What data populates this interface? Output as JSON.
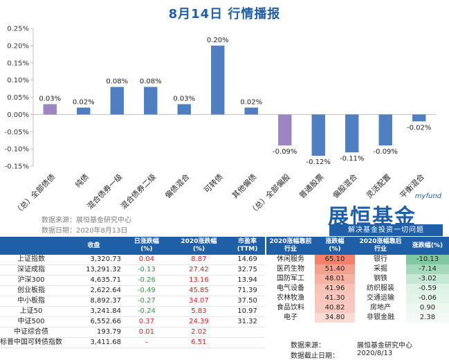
{
  "title": "8月14日  行情播报",
  "chart_data": {
    "type": "bar",
    "categories": [
      "（总）全部债债",
      "纯债",
      "混合债券一级",
      "混合债券二级",
      "偏债混合",
      "可转债",
      "其他偏债",
      "（总）全部偏股",
      "普通股票",
      "偏股混合",
      "灵活配置",
      "平衡混合"
    ],
    "values": [
      0.03,
      0.02,
      0.08,
      0.08,
      0.03,
      0.2,
      0.02,
      -0.09,
      -0.12,
      -0.11,
      -0.09,
      -0.02
    ],
    "data_labels": [
      "0.03%",
      "0.02%",
      "0.08%",
      "0.08%",
      "0.03%",
      "0.20%",
      "0.02%",
      "-0.09%",
      "-0.12%",
      "-0.11%",
      "-0.09%",
      "-0.02%"
    ],
    "highlight_color": "#9b86c2",
    "bar_color": "#4f7fc0",
    "highlight": [
      0,
      7
    ],
    "ylim": [
      -0.15,
      0.25
    ],
    "yticks": [
      0.25,
      0.2,
      0.15,
      0.1,
      0.05,
      0.0,
      -0.05,
      -0.1,
      -0.15
    ],
    "ytick_labels": [
      "0.25%",
      "0.20%",
      "0.15%",
      "0.10%",
      "0.05%",
      "0.00%",
      "-0.05%",
      "-0.10%",
      "-0.15%"
    ],
    "grid": false
  },
  "source": {
    "line1": "数据来源：展恒基金研究中心",
    "line2": "数据日期：2020年8月13日"
  },
  "logo": {
    "small": "myfund",
    "main": "展恒基金",
    "sub": "解决基金投资一切问题"
  },
  "index_table": {
    "headers": [
      "",
      "收盘",
      "日涨跌幅\n(%)",
      "2020涨跌幅\n(%)",
      "市盈率\n(TTM)"
    ],
    "rows": [
      {
        "name": "上证指数",
        "close": "3,320.73",
        "day": "0.04",
        "ytd": "8.87",
        "pe": "14.69"
      },
      {
        "name": "深证成指",
        "close": "13,291.32",
        "day": "-0.13",
        "ytd": "27.42",
        "pe": "32.75"
      },
      {
        "name": "沪深300",
        "close": "4,635.71",
        "day": "-0.26",
        "ytd": "13.16",
        "pe": "13.94"
      },
      {
        "name": "创业板指",
        "close": "2,622.64",
        "day": "-0.49",
        "ytd": "45.85",
        "pe": "71.39"
      },
      {
        "name": "中小板指",
        "close": "8,892.37",
        "day": "-0.27",
        "ytd": "34.07",
        "pe": "37.50"
      },
      {
        "name": "上证50",
        "close": "3,241.84",
        "day": "-0.24",
        "ytd": "5.83",
        "pe": "10.97"
      },
      {
        "name": "中证500",
        "close": "6,552.66",
        "day": "0.37",
        "ytd": "24.39",
        "pe": "31.32"
      },
      {
        "name": "中证综合债",
        "close": "193.79",
        "day": "0.01",
        "ytd": "2.02",
        "pe": ""
      },
      {
        "name": "标普中国可转债指数",
        "close": "3,411.68",
        "day": "–",
        "ytd": "6.51",
        "pe": ""
      }
    ]
  },
  "sector_table": {
    "headers": [
      "2020涨幅靠前\n行业",
      "涨跌幅\n(%)",
      "2020涨幅靠后\n行业",
      "涨跌幅(%)"
    ],
    "rows": [
      {
        "top": "休闲服务",
        "top_val": "65.10",
        "bot": "银行",
        "bot_val": "-10.13"
      },
      {
        "top": "医药生物",
        "top_val": "51.40",
        "bot": "采掘",
        "bot_val": "-7.14"
      },
      {
        "top": "国防军工",
        "top_val": "48.01",
        "bot": "钢铁",
        "bot_val": "-3.02"
      },
      {
        "top": "电气设备",
        "top_val": "41.96",
        "bot": "纺织服装",
        "bot_val": "-0.59"
      },
      {
        "top": "农林牧渔",
        "top_val": "41.30",
        "bot": "交通运输",
        "bot_val": "-0.06"
      },
      {
        "top": "食品饮料",
        "top_val": "40.82",
        "bot": "房地产",
        "bot_val": "0.90"
      },
      {
        "top": "电子",
        "top_val": "34.80",
        "bot": "非银金融",
        "bot_val": "2.38"
      }
    ],
    "top_colors": [
      "#f2806b",
      "#f4a08f",
      "#f6b2a3",
      "#f8c3b7",
      "#f8c6bb",
      "#f8c9be",
      "#fbdcd4"
    ],
    "bot_colors": [
      "#7fc8a1",
      "#a6d9bc",
      "#c7e8d4",
      "#dff2e6",
      "#e5f4ea",
      "#eef8f1",
      "#f3faf5"
    ]
  },
  "footer": {
    "src_label": "数据来源：",
    "src_value": "展恒基金研究中心",
    "date_label": "数据截止日期：",
    "date_value": "2020/8/13"
  }
}
